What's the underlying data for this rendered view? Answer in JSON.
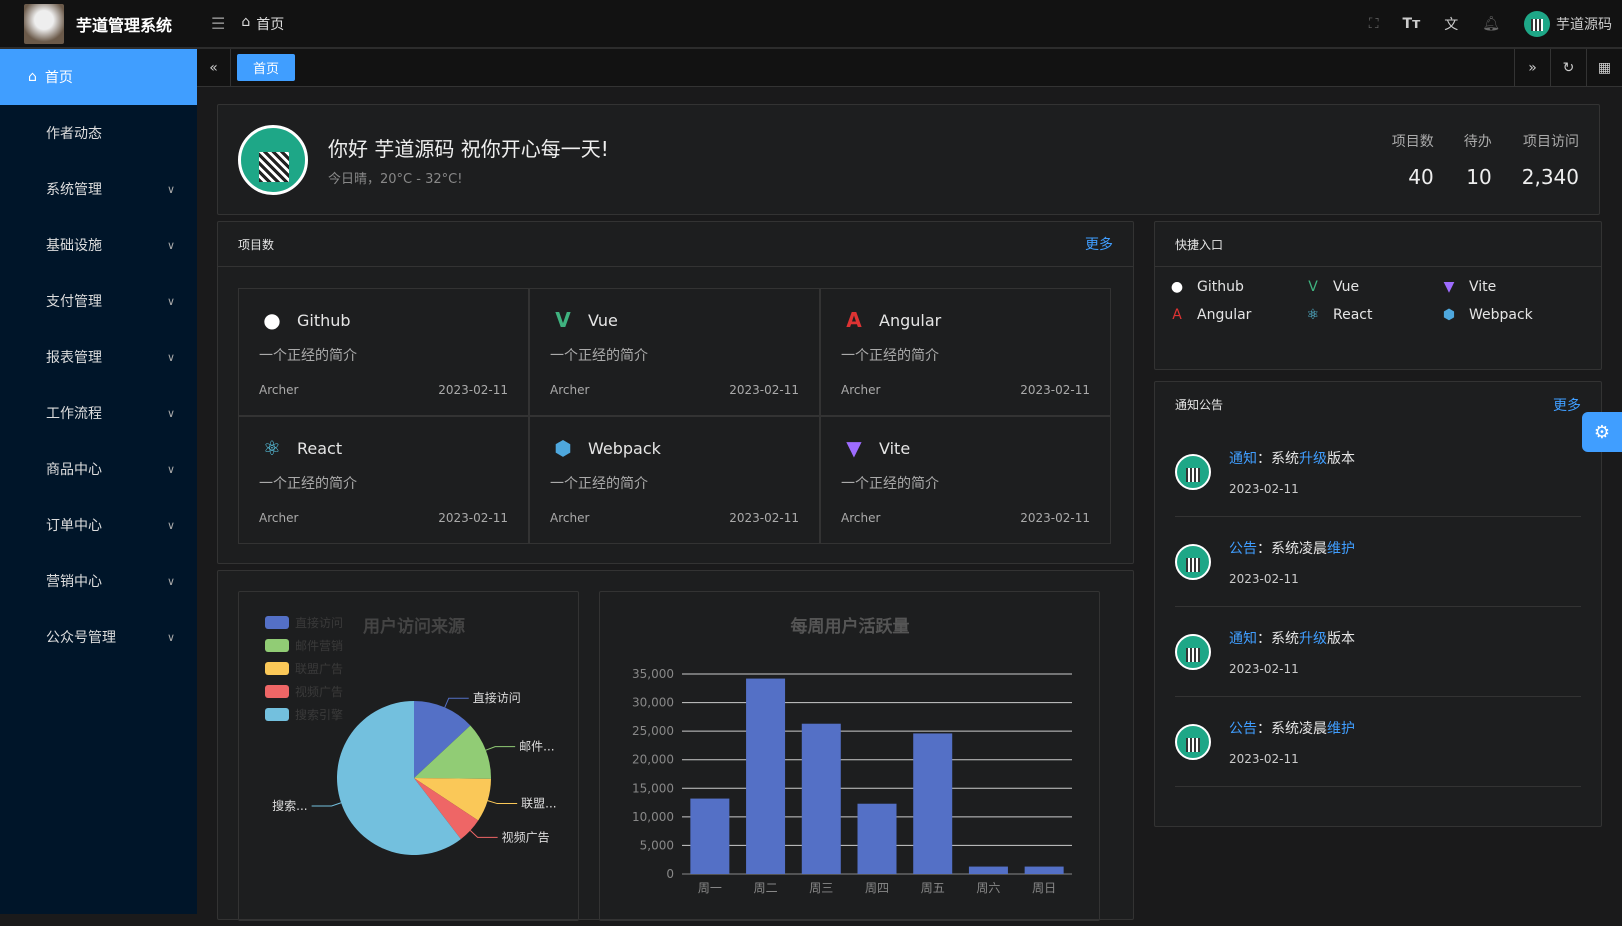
{
  "app": {
    "title": "芋道管理系统",
    "breadcrumb": "首页",
    "user": "芋道源码"
  },
  "sidebar": {
    "items": [
      {
        "label": "首页",
        "active": true
      },
      {
        "label": "作者动态"
      },
      {
        "label": "系统管理",
        "expandable": true
      },
      {
        "label": "基础设施",
        "expandable": true
      },
      {
        "label": "支付管理",
        "expandable": true
      },
      {
        "label": "报表管理",
        "expandable": true
      },
      {
        "label": "工作流程",
        "expandable": true
      },
      {
        "label": "商品中心",
        "expandable": true
      },
      {
        "label": "订单中心",
        "expandable": true
      },
      {
        "label": "营销中心",
        "expandable": true
      },
      {
        "label": "公众号管理",
        "expandable": true
      }
    ]
  },
  "tabs": [
    {
      "label": "首页",
      "active": true
    }
  ],
  "welcome": {
    "greeting": "你好 芋道源码 祝你开心每一天!",
    "weather": "今日晴，20°C - 32°C!",
    "stats": [
      {
        "label": "项目数",
        "value": "40"
      },
      {
        "label": "待办",
        "value": "10"
      },
      {
        "label": "项目访问",
        "value": "2,340"
      }
    ]
  },
  "projects": {
    "title": "项目数",
    "more": "更多",
    "items": [
      {
        "name": "Github",
        "desc": "一个正经的简介",
        "author": "Archer",
        "date": "2023-02-11",
        "icon": "github-icon",
        "color": "#ffffff"
      },
      {
        "name": "Vue",
        "desc": "一个正经的简介",
        "author": "Archer",
        "date": "2023-02-11",
        "icon": "vue-icon",
        "color": "#3fb27f"
      },
      {
        "name": "Angular",
        "desc": "一个正经的简介",
        "author": "Archer",
        "date": "2023-02-11",
        "icon": "angular-icon",
        "color": "#dd3333"
      },
      {
        "name": "React",
        "desc": "一个正经的简介",
        "author": "Archer",
        "date": "2023-02-11",
        "icon": "react-icon",
        "color": "#61dafb"
      },
      {
        "name": "Webpack",
        "desc": "一个正经的简介",
        "author": "Archer",
        "date": "2023-02-11",
        "icon": "webpack-icon",
        "color": "#4ea8de"
      },
      {
        "name": "Vite",
        "desc": "一个正经的简介",
        "author": "Archer",
        "date": "2023-02-11",
        "icon": "vite-icon",
        "color": "#9e6cff"
      }
    ]
  },
  "quick": {
    "title": "快捷入口",
    "items": [
      {
        "name": "Github",
        "icon": "github-icon"
      },
      {
        "name": "Vue",
        "icon": "vue-icon"
      },
      {
        "name": "Vite",
        "icon": "vite-icon"
      },
      {
        "name": "Angular",
        "icon": "angular-icon"
      },
      {
        "name": "React",
        "icon": "react-icon"
      },
      {
        "name": "Webpack",
        "icon": "webpack-icon"
      }
    ]
  },
  "notice": {
    "title": "通知公告",
    "more": "更多",
    "items": [
      {
        "type": "通知",
        "pre": "：系统",
        "hl": "升级",
        "post": "版本",
        "date": "2023-02-11"
      },
      {
        "type": "公告",
        "pre": "：系统凌晨",
        "hl": "维护",
        "post": "",
        "date": "2023-02-11"
      },
      {
        "type": "通知",
        "pre": "：系统",
        "hl": "升级",
        "post": "版本",
        "date": "2023-02-11"
      },
      {
        "type": "公告",
        "pre": "：系统凌晨",
        "hl": "维护",
        "post": "",
        "date": "2023-02-11"
      }
    ]
  },
  "chart_data": [
    {
      "type": "pie",
      "title": "用户访问来源",
      "legend_position": "top-left",
      "slices": [
        {
          "name": "直接访问",
          "value": 335,
          "color": "#5470c6",
          "label": "直接访问"
        },
        {
          "name": "邮件营销",
          "value": 310,
          "color": "#91cc75",
          "label": "邮件..."
        },
        {
          "name": "联盟广告",
          "value": 234,
          "color": "#fac858",
          "label": "联盟..."
        },
        {
          "name": "视频广告",
          "value": 135,
          "color": "#ee6666",
          "label": "视频广告"
        },
        {
          "name": "搜索引擎",
          "value": 1548,
          "color": "#73c0de",
          "label": "搜索..."
        }
      ]
    },
    {
      "type": "bar",
      "title": "每周用户活跃量",
      "categories": [
        "周一",
        "周二",
        "周三",
        "周四",
        "周五",
        "周六",
        "周日"
      ],
      "values": [
        13200,
        34200,
        26300,
        12300,
        24600,
        1300,
        1300
      ],
      "ylim": [
        0,
        35000
      ],
      "yticks": [
        "0",
        "5,000",
        "10,000",
        "15,000",
        "20,000",
        "25,000",
        "30,000",
        "35,000"
      ],
      "grid": true,
      "color": "#5470c6"
    }
  ]
}
